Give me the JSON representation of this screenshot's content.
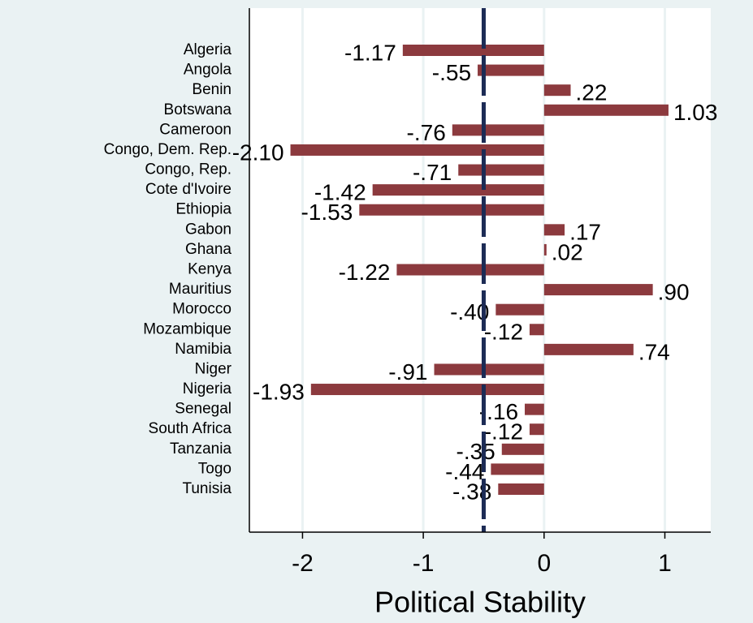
{
  "chart_data": {
    "type": "hbar",
    "x_label": "Political Stability",
    "categories": [
      "Algeria",
      "Angola",
      "Benin",
      "Botswana",
      "Cameroon",
      "Congo, Dem. Rep.",
      "Congo, Rep.",
      "Cote d'Ivoire",
      "Ethiopia",
      "Gabon",
      "Ghana",
      "Kenya",
      "Mauritius",
      "Morocco",
      "Mozambique",
      "Namibia",
      "Niger",
      "Nigeria",
      "Senegal",
      "South Africa",
      "Tanzania",
      "Togo",
      "Tunisia"
    ],
    "values": [
      -1.17,
      -0.55,
      0.22,
      1.03,
      -0.76,
      -2.1,
      -0.71,
      -1.42,
      -1.53,
      0.17,
      0.02,
      -1.22,
      0.9,
      -0.4,
      -0.12,
      0.74,
      -0.91,
      -1.93,
      -0.16,
      -0.12,
      -0.35,
      -0.44,
      -0.38
    ],
    "value_labels": [
      "-1.17",
      "-.55",
      ".22",
      "1.03",
      "-.76",
      "-2.10",
      "-.71",
      "-1.42",
      "-1.53",
      ".17",
      ".02",
      "-1.22",
      ".90",
      "-.40",
      "-.12",
      ".74",
      "-.91",
      "-1.93",
      "-.16",
      "-.12",
      "-.35",
      "-.44",
      "-.38"
    ],
    "color": "#8c3a3e",
    "xlim": [
      -2.44,
      1.38
    ],
    "xticks": [
      -2,
      -1,
      0,
      1
    ],
    "grid": true,
    "refline": -0.5,
    "refline_color": "#1c2b55"
  }
}
